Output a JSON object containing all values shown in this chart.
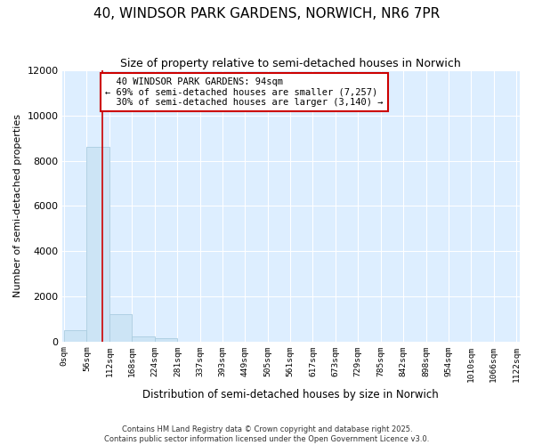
{
  "title": "40, WINDSOR PARK GARDENS, NORWICH, NR6 7PR",
  "subtitle": "Size of property relative to semi-detached houses in Norwich",
  "xlabel": "Distribution of semi-detached houses by size in Norwich",
  "ylabel": "Number of semi-detached properties",
  "property_size": 94,
  "property_label": "40 WINDSOR PARK GARDENS: 94sqm",
  "pct_smaller": 69,
  "pct_smaller_count": 7257,
  "pct_larger": 30,
  "pct_larger_count": 3140,
  "bin_width": 56,
  "bin_starts": [
    0,
    56,
    112,
    168,
    224,
    281,
    337,
    393,
    449,
    505,
    561,
    617,
    673,
    729,
    785,
    842,
    898,
    954,
    1010,
    1066
  ],
  "bin_counts": [
    500,
    8600,
    1200,
    200,
    150,
    0,
    0,
    0,
    0,
    0,
    0,
    0,
    0,
    0,
    0,
    0,
    0,
    0,
    0,
    0
  ],
  "ylim": [
    0,
    12000
  ],
  "yticks": [
    0,
    2000,
    4000,
    6000,
    8000,
    10000,
    12000
  ],
  "bar_color": "#cce4f5",
  "bar_edge_color": "#aacce0",
  "vline_color": "#cc0000",
  "annotation_box_edgecolor": "#cc0000",
  "background_color": "#ddeeff",
  "plot_bg_color": "#ddeeff",
  "grid_color": "#ffffff",
  "fig_bg_color": "#ffffff",
  "footer_text": "Contains HM Land Registry data © Crown copyright and database right 2025.\nContains public sector information licensed under the Open Government Licence v3.0."
}
